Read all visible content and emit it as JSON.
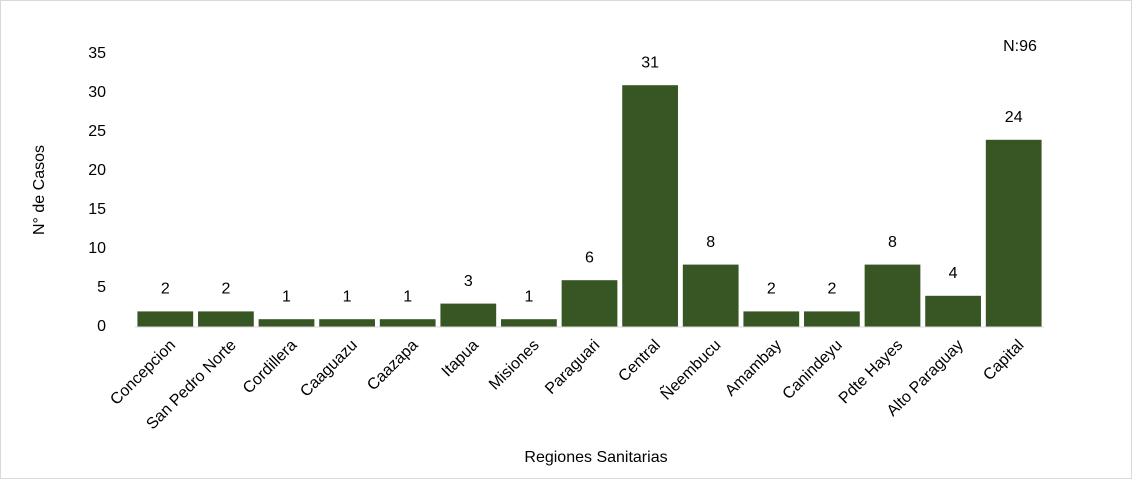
{
  "chart_data": {
    "type": "bar",
    "categories": [
      "Concepcion",
      "San Pedro Norte",
      "Cordillera",
      "Caaguazu",
      "Caazapa",
      "Itapua",
      "Misiones",
      "Paraguari",
      "Central",
      "Ñeembucu",
      "Amambay",
      "Canindeyu",
      "Pdte Hayes",
      "Alto Paraguay",
      "Capital"
    ],
    "values": [
      2,
      2,
      1,
      1,
      1,
      3,
      1,
      6,
      31,
      8,
      2,
      2,
      8,
      4,
      24
    ],
    "color": "#375623",
    "ylim": [
      0,
      35
    ],
    "yticks": [
      0,
      5,
      10,
      15,
      20,
      25,
      30,
      35
    ],
    "grid": false,
    "x_label": "Regiones Sanitarias",
    "y_label": "N° de Casos",
    "annotation": "N:96"
  }
}
